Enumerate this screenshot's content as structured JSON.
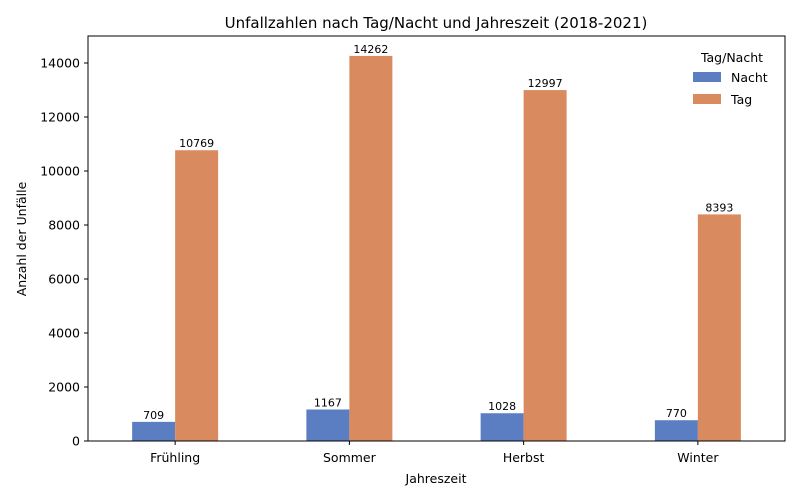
{
  "chart_data": {
    "type": "bar",
    "title": "Unfallzahlen nach Tag/Nacht und Jahreszeit (2018-2021)",
    "xlabel": "Jahreszeit",
    "ylabel": "Anzahl der Unfälle",
    "categories": [
      "Frühling",
      "Sommer",
      "Herbst",
      "Winter"
    ],
    "series": [
      {
        "name": "Nacht",
        "color": "#5b7ec2",
        "values": [
          709,
          1167,
          1028,
          770
        ]
      },
      {
        "name": "Tag",
        "color": "#d98b5f",
        "values": [
          10769,
          14262,
          12997,
          8393
        ]
      }
    ],
    "ylim": [
      0,
      15000
    ],
    "yticks": [
      0,
      2000,
      4000,
      6000,
      8000,
      10000,
      12000,
      14000
    ],
    "grid": false,
    "legend": {
      "title": "Tag/Nacht",
      "placement": "top-right"
    }
  }
}
